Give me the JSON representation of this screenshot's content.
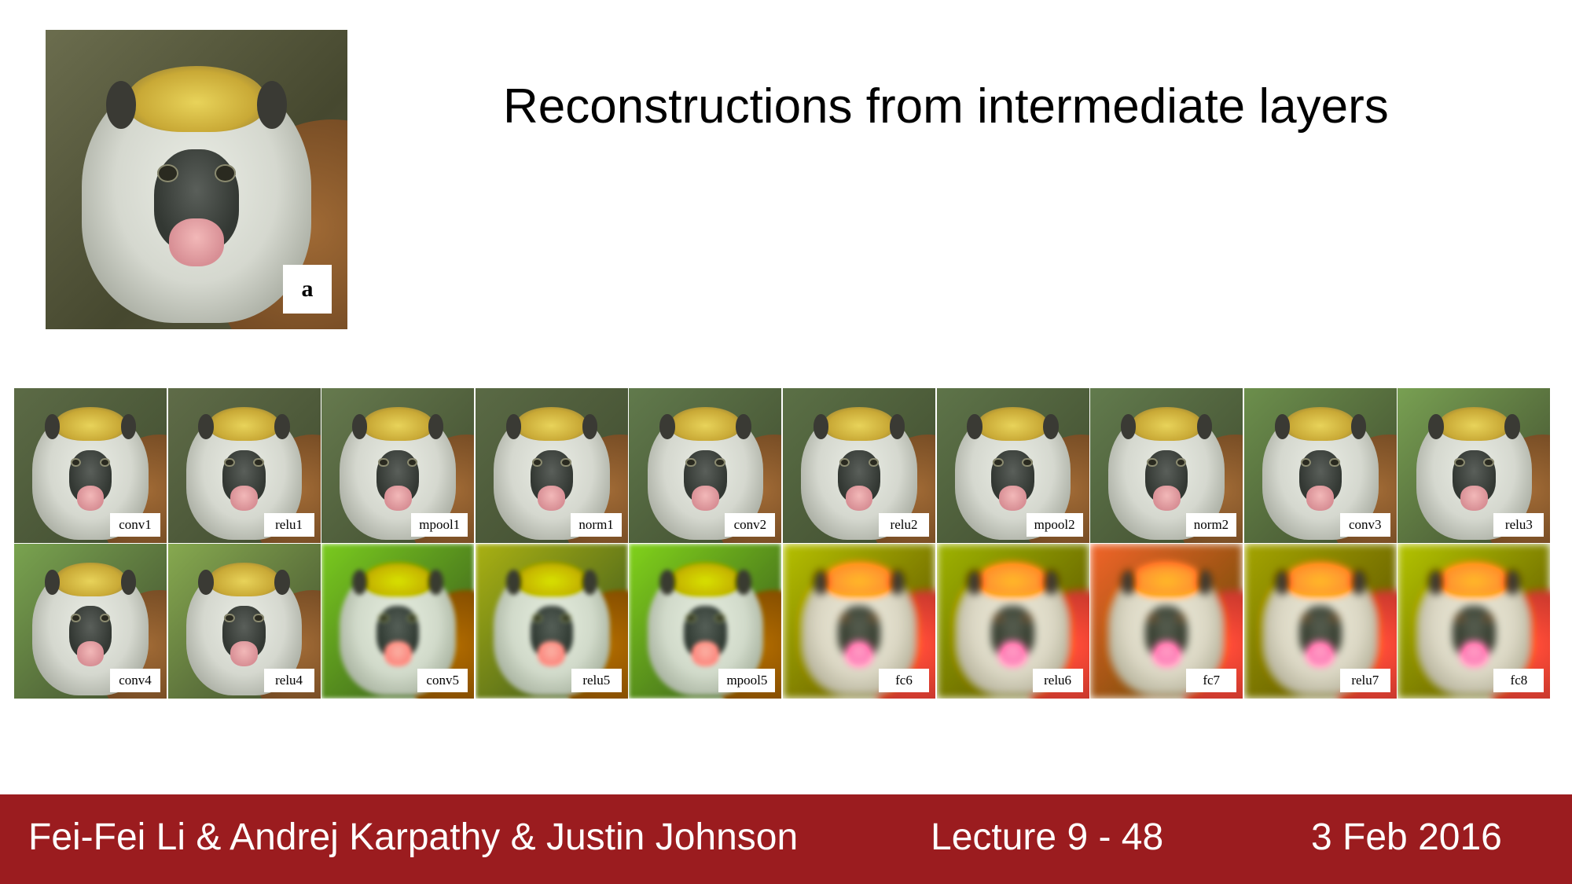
{
  "title": "Reconstructions from intermediate layers",
  "original_label": "a",
  "layers_row1": [
    "conv1",
    "relu1",
    "mpool1",
    "norm1",
    "conv2",
    "relu2",
    "mpool2",
    "norm2",
    "conv3",
    "relu3"
  ],
  "layers_row2": [
    "conv4",
    "relu4",
    "conv5",
    "relu5",
    "mpool5",
    "fc6",
    "relu6",
    "fc7",
    "relu7",
    "fc8"
  ],
  "footer": {
    "authors": "Fei-Fei Li & Andrej Karpathy & Justin Johnson",
    "lecture": "Lecture 9 - 48",
    "date": "3 Feb 2016"
  },
  "colors": {
    "footer_bg": "#9b1c1f"
  }
}
